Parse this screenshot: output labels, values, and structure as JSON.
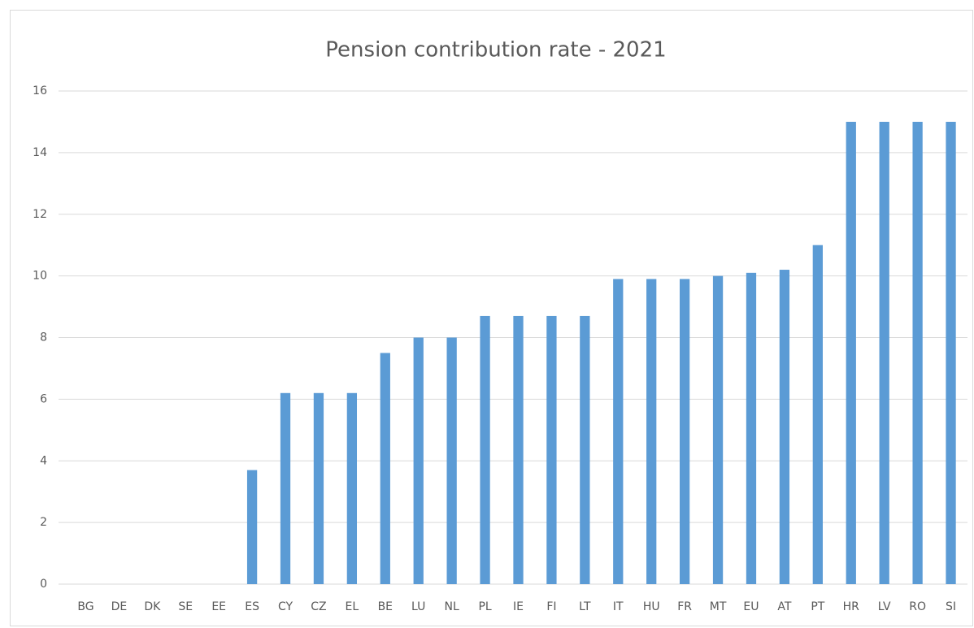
{
  "chart_data": {
    "type": "bar",
    "title": "Pension contribution rate - 2021",
    "categories": [
      "BG",
      "DE",
      "DK",
      "SE",
      "EE",
      "ES",
      "CY",
      "CZ",
      "EL",
      "BE",
      "LU",
      "NL",
      "PL",
      "IE",
      "FI",
      "LT",
      "IT",
      "HU",
      "FR",
      "MT",
      "EU",
      "AT",
      "PT",
      "HR",
      "LV",
      "RO",
      "SI"
    ],
    "values": [
      0,
      0,
      0,
      0,
      0,
      3.7,
      6.2,
      6.2,
      6.2,
      7.5,
      8,
      8,
      8.7,
      8.7,
      8.7,
      8.7,
      9.9,
      9.9,
      9.9,
      10,
      10.1,
      10.2,
      11,
      15,
      15,
      15,
      15
    ],
    "color": "#5b9bd5",
    "ylim": [
      0,
      16
    ],
    "yticks": [
      0,
      2,
      4,
      6,
      8,
      10,
      12,
      14,
      16
    ],
    "grid": true
  }
}
